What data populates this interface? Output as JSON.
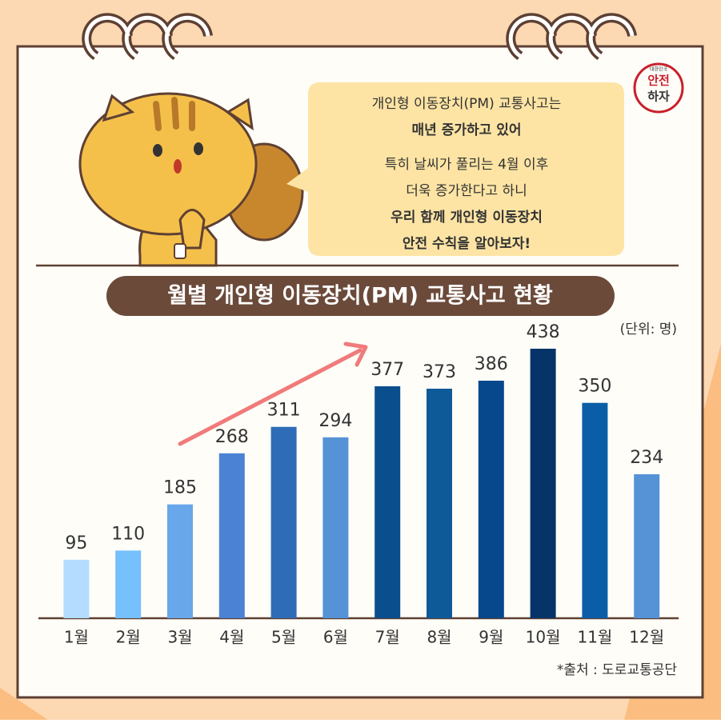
{
  "chart_data": {
    "type": "bar",
    "title": "월별 개인형 이동장치(PM) 교통사고 현황",
    "unit": "(단위: 명)",
    "source": "*출처 : 도로교통공단",
    "categories": [
      "1월",
      "2월",
      "3월",
      "4월",
      "5월",
      "6월",
      "7월",
      "8월",
      "9월",
      "10월",
      "11월",
      "12월"
    ],
    "values": [
      95,
      110,
      185,
      268,
      311,
      294,
      377,
      373,
      386,
      438,
      350,
      234
    ],
    "colors": [
      "#b3dcff",
      "#76c0fb",
      "#68a8ea",
      "#4b82d4",
      "#2f6cb8",
      "#5593d6",
      "#0b4e8e",
      "#0e5a98",
      "#07478b",
      "#063469",
      "#0a5ea8",
      "#5592d6"
    ]
  },
  "speech_bubble": {
    "lines": [
      {
        "text": "개인형 이동장치(PM) 교통사고는",
        "bold": false
      },
      {
        "text": "매년 증가하고 있어",
        "bold": true
      },
      {
        "text": "특히 날씨가 풀리는 4월 이후",
        "bold": false
      },
      {
        "text": "더욱 증가한다고 하니",
        "bold": false
      },
      {
        "text": "우리 함께 개인형 이동장치",
        "bold": true
      },
      {
        "text": "안전 수칙을 알아보자!",
        "bold": true
      }
    ]
  },
  "logo": {
    "top": "대한민국",
    "line1": "안전",
    "line2": "하자"
  }
}
